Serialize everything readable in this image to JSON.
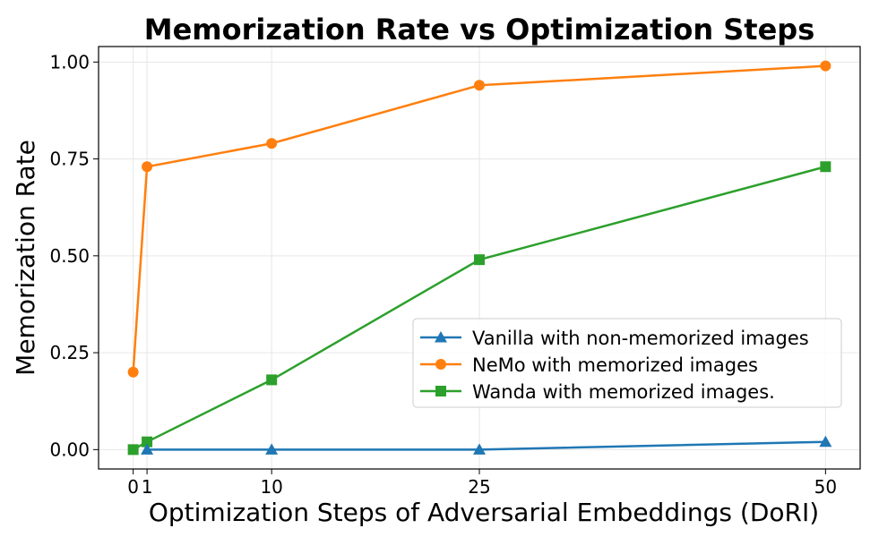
{
  "chart_data": {
    "type": "line",
    "title": "Memorization Rate vs Optimization Steps",
    "xlabel": "Optimization Steps of Adversarial Embeddings (DoRI)",
    "ylabel": "Memorization Rate",
    "x": [
      0,
      1,
      10,
      25,
      50
    ],
    "xticks": [
      0,
      1,
      10,
      25,
      50
    ],
    "xtick_labels": [
      "0",
      "1",
      "10",
      "25",
      "50"
    ],
    "yticks": [
      0.0,
      0.25,
      0.5,
      0.75,
      1.0
    ],
    "ytick_labels": [
      "0.00",
      "0.25",
      "0.50",
      "0.75",
      "1.00"
    ],
    "xlim": [
      -2.5,
      52.5
    ],
    "ylim": [
      -0.05,
      1.04
    ],
    "grid": true,
    "legend_position": "center-right",
    "series": [
      {
        "name": "Vanilla with non-memorized images",
        "values": [
          null,
          0.0,
          0.0,
          0.0,
          0.02
        ],
        "color": "#1f77b4",
        "marker": "triangle"
      },
      {
        "name": "NeMo with memorized images",
        "values": [
          0.2,
          0.73,
          0.79,
          0.94,
          0.99
        ],
        "color": "#ff7f0e",
        "marker": "circle"
      },
      {
        "name": "Wanda with memorized images.",
        "values": [
          0.0,
          0.02,
          0.18,
          0.49,
          0.73
        ],
        "color": "#2ca02c",
        "marker": "square"
      }
    ]
  }
}
